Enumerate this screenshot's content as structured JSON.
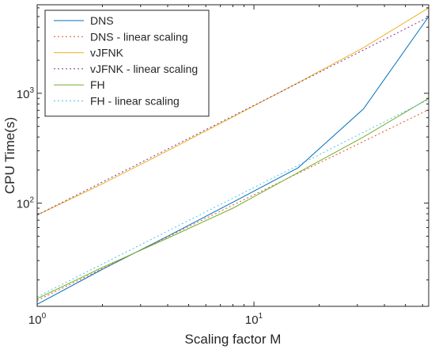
{
  "chart_data": {
    "type": "line",
    "xlabel": "Scaling factor M",
    "ylabel": "CPU Time(s)",
    "xscale": "log",
    "yscale": "log",
    "xlim": [
      1,
      64
    ],
    "ylim": [
      11.5,
      6400
    ],
    "x_ticks": [
      {
        "value": 1,
        "base": "10",
        "exp": "0"
      },
      {
        "value": 10,
        "base": "10",
        "exp": "1"
      }
    ],
    "y_ticks": [
      {
        "value": 100,
        "base": "10",
        "exp": "2"
      },
      {
        "value": 1000,
        "base": "10",
        "exp": "3"
      }
    ],
    "grid": false,
    "legend_position": "top-left",
    "series": [
      {
        "name": "DNS",
        "color": "#0072BD",
        "dash": "solid",
        "x": [
          1,
          2,
          4,
          8,
          16,
          32,
          64
        ],
        "y": [
          12,
          25,
          50,
          102,
          210,
          720,
          5000
        ]
      },
      {
        "name": "DNS - linear scaling",
        "color": "#D95319",
        "dash": "dotted",
        "x": [
          1,
          64
        ],
        "y": [
          13,
          710
        ]
      },
      {
        "name": "vJFNK",
        "color": "#EDB120",
        "dash": "solid",
        "x": [
          1,
          2,
          4,
          8,
          16,
          32,
          64
        ],
        "y": [
          78,
          150,
          300,
          610,
          1250,
          2600,
          6000
        ]
      },
      {
        "name": "vJFNK - linear scaling",
        "color": "#7E2F8E",
        "dash": "dotted",
        "x": [
          1,
          64
        ],
        "y": [
          78,
          4950
        ]
      },
      {
        "name": "FH",
        "color": "#77AC30",
        "dash": "solid",
        "x": [
          1,
          2,
          4,
          8,
          16,
          32,
          64
        ],
        "y": [
          13.5,
          26,
          48,
          90,
          190,
          400,
          900
        ]
      },
      {
        "name": "FH - linear scaling",
        "color": "#4DBEEE",
        "dash": "dotted",
        "x": [
          1,
          64
        ],
        "y": [
          14,
          880
        ]
      }
    ]
  }
}
